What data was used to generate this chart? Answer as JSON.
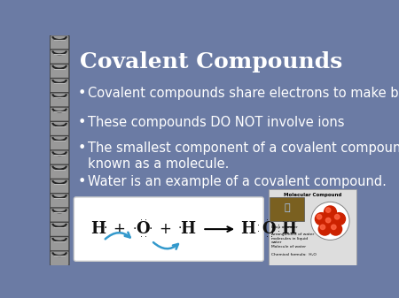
{
  "title": "Covalent Compounds",
  "title_fontsize": 18,
  "title_color": "#FFFFFF",
  "bg_color": "#6B7BA4",
  "bullet_points": [
    "Covalent compounds share electrons to make bonds.",
    "These compounds DO NOT involve ions",
    "The smallest component of a covalent compound is\nknown as a molecule.",
    "Water is an example of a covalent compound."
  ],
  "bullet_fontsize": 10.5,
  "bullet_color": "#FFFFFF",
  "box_color": "#FFFFFF",
  "box_edge_color": "#CCCCCC",
  "eq_color": "#111111",
  "arrow_color": "#3399CC",
  "spiral_face": "#999999",
  "spiral_edge": "#444444",
  "spiral_dark": "#222222",
  "num_spirals": 16
}
